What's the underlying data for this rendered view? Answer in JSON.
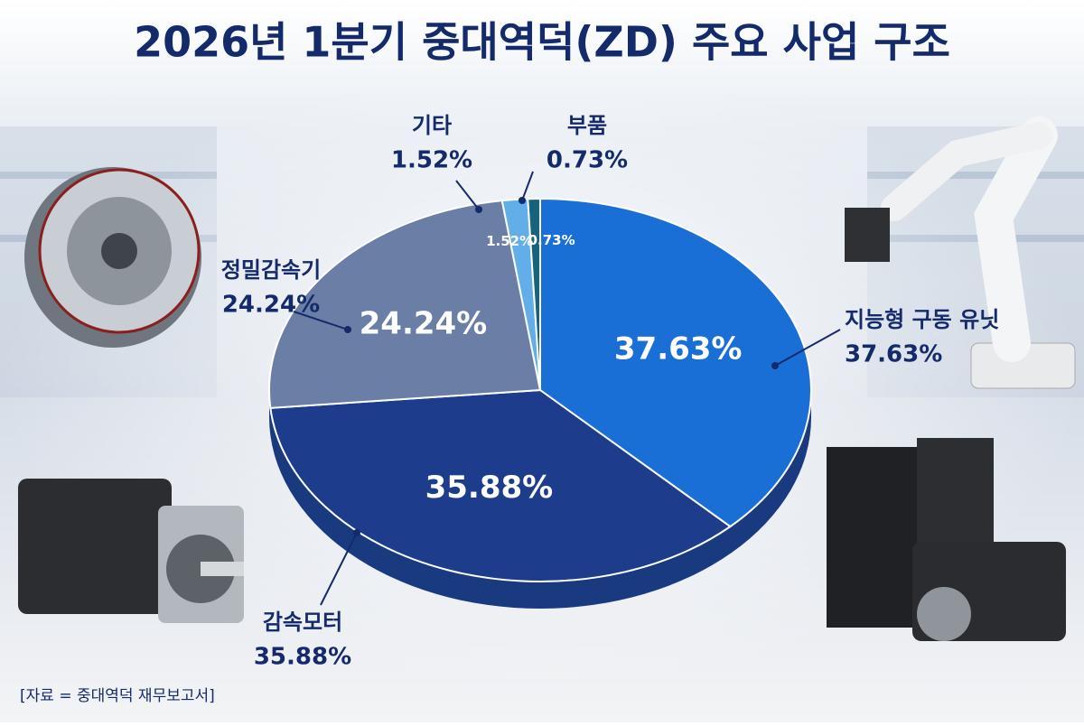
{
  "chart_data": {
    "type": "pie",
    "title": "2026년 1분기 중대역덕(ZD) 주요 사업 구조",
    "categories": [
      "지능형 구동 유닛",
      "감속모터",
      "정밀감속기",
      "기타",
      "부품"
    ],
    "values": [
      37.63,
      35.88,
      24.24,
      1.52,
      0.73
    ],
    "value_labels": [
      "37.63%",
      "35.88%",
      "24.24%",
      "1.52%",
      "0.73%"
    ],
    "colors": [
      "#1a6fd6",
      "#1d3d8c",
      "#6a7ea6",
      "#62aee9",
      "#17627e"
    ],
    "source": "[자료 = 중대역덕 재무보고서]"
  }
}
